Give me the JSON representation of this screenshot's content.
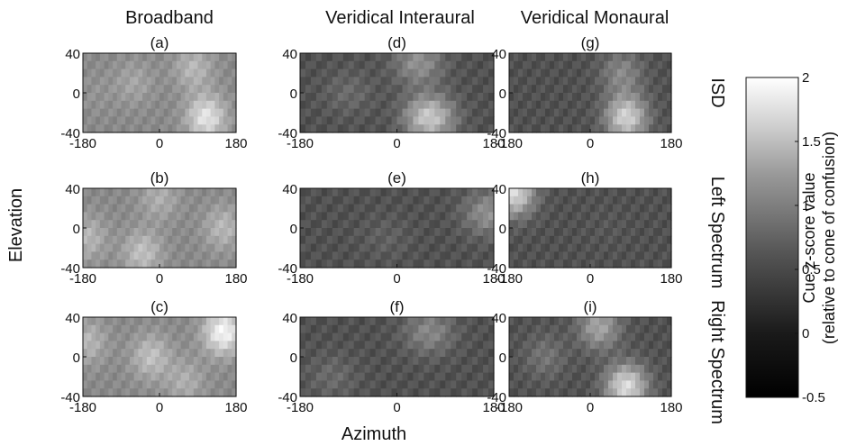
{
  "chart_data": {
    "type": "heatmap",
    "columns": [
      "Broadband",
      "Veridical Interaural",
      "Veridical Monaural"
    ],
    "rows": [
      "ISD",
      "Left Spectrum",
      "Right Spectrum"
    ],
    "xlabel": "Azimuth",
    "ylabel": "Elevation",
    "xlim": [
      -180,
      180
    ],
    "ylim": [
      -40,
      40
    ],
    "x_ticks": [
      "-180",
      "0",
      "180"
    ],
    "y_ticks": [
      "40",
      "0",
      "-40"
    ],
    "colorbar": {
      "label_line1": "Cue z-score value",
      "label_line2": "(relative to cone of confusion)",
      "range": [
        -0.5,
        2
      ],
      "ticks": [
        "2",
        "1.5",
        "1",
        "0.5",
        "0",
        "-0.5"
      ],
      "colormap": "grayscale"
    },
    "panels": [
      {
        "label": "(a)",
        "column": "Broadband",
        "row": "ISD",
        "hot_spots": [
          [
            -150,
            0,
            0.8
          ],
          [
            110,
            -25,
            1.7
          ],
          [
            80,
            25,
            1.2
          ],
          [
            -60,
            10,
            1.0
          ]
        ]
      },
      {
        "label": "(b)",
        "column": "Broadband",
        "row": "Left Spectrum",
        "hot_spots": [
          [
            -40,
            -25,
            1.3
          ],
          [
            150,
            0,
            1.2
          ],
          [
            -170,
            -10,
            1.2
          ],
          [
            0,
            30,
            1.1
          ]
        ]
      },
      {
        "label": "(c)",
        "column": "Broadband",
        "row": "Right Spectrum",
        "hot_spots": [
          [
            -20,
            0,
            1.3
          ],
          [
            150,
            25,
            1.9
          ],
          [
            -170,
            15,
            1.2
          ],
          [
            60,
            -25,
            1.1
          ]
        ]
      },
      {
        "label": "(d)",
        "column": "Veridical Interaural",
        "row": "ISD",
        "hot_spots": [
          [
            60,
            -25,
            1.4
          ],
          [
            40,
            30,
            0.8
          ],
          [
            -90,
            0,
            0.4
          ]
        ]
      },
      {
        "label": "(e)",
        "column": "Veridical Interaural",
        "row": "Left Spectrum",
        "hot_spots": [
          [
            170,
            15,
            0.8
          ],
          [
            -20,
            -10,
            0.3
          ]
        ]
      },
      {
        "label": "(f)",
        "column": "Veridical Interaural",
        "row": "Right Spectrum",
        "hot_spots": [
          [
            60,
            25,
            0.7
          ],
          [
            -120,
            -20,
            0.4
          ]
        ]
      },
      {
        "label": "(g)",
        "column": "Veridical Monaural",
        "row": "ISD",
        "hot_spots": [
          [
            80,
            -25,
            1.5
          ],
          [
            70,
            20,
            0.7
          ]
        ]
      },
      {
        "label": "(h)",
        "column": "Veridical Monaural",
        "row": "Left Spectrum",
        "hot_spots": [
          [
            -170,
            35,
            1.6
          ],
          [
            40,
            0,
            0.2
          ]
        ]
      },
      {
        "label": "(i)",
        "column": "Veridical Monaural",
        "row": "Right Spectrum",
        "hot_spots": [
          [
            80,
            -30,
            1.6
          ],
          [
            20,
            30,
            1.0
          ],
          [
            -100,
            0,
            0.5
          ]
        ]
      }
    ]
  }
}
